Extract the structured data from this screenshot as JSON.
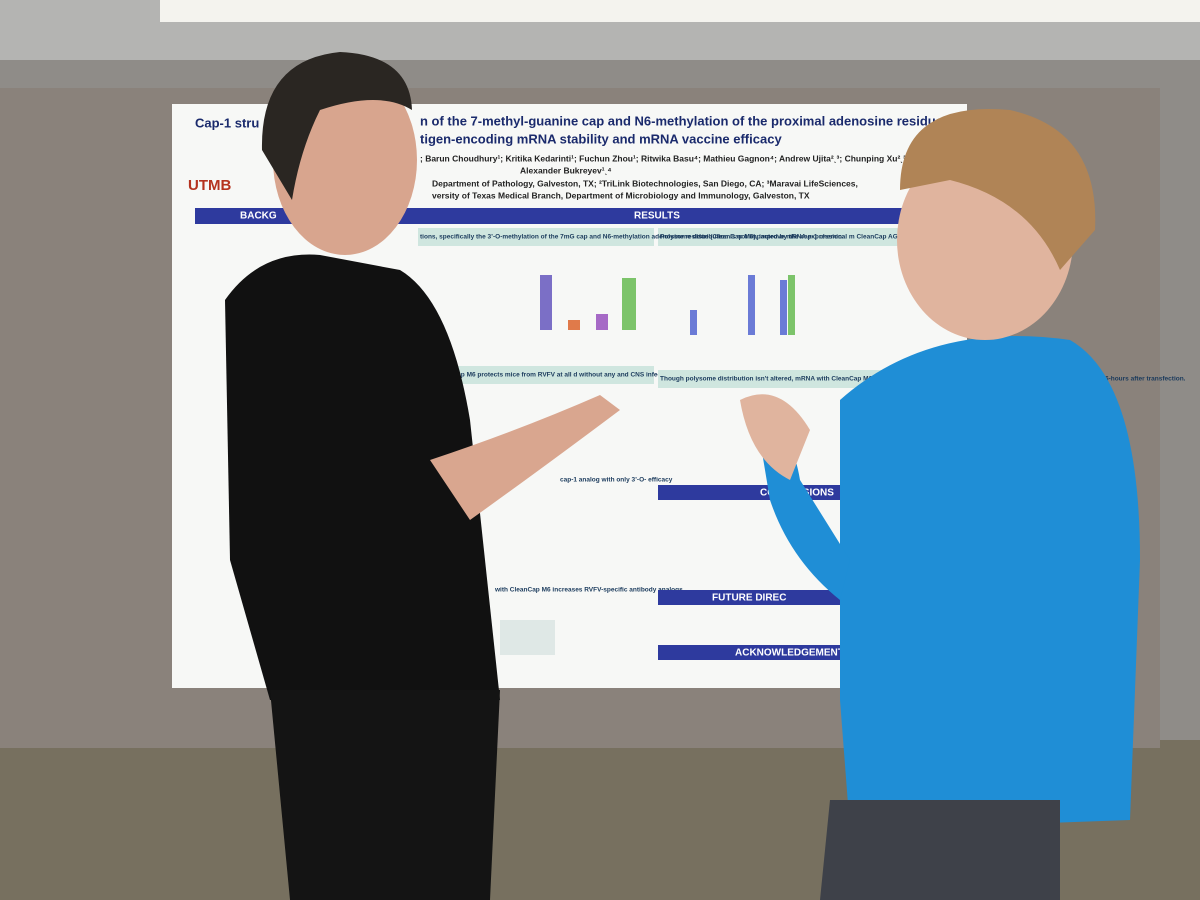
{
  "poster": {
    "title_start": "Cap-1 stru",
    "title_line1": "n of the 7-methyl-guanine cap and N6-methylation of the proximal adenosine residue",
    "title_line2": "tigen-encoding mRNA stability and mRNA vaccine efficacy",
    "authors_line1": "; Barun Choudhury¹; Kritika Kedarinti¹; Fuchun Zhou¹; Ritwika Basu⁴; Mathieu Gagnon⁴; Andrew Ujita²ˎ³; Chunping Xu²ˎ³;",
    "authors_line2": "Alexander Bukreyev¹ˎ⁴",
    "affiliations_line1": "Department of Pathology, Galveston, TX; ²TriLink Biotechnologies, San Diego, CA; ³Maravai LifeSciences,",
    "affiliations_line2": "versity of Texas Medical Branch, Department of Microbiology and Immunology, Galveston, TX",
    "logo": "UTMB",
    "sections": {
      "background": "BACKG",
      "results": "RESULTS",
      "conclusions": "CONCLUSIONS",
      "future": "FUTURE DIREC",
      "acknowledgements": "ACKNOWLEDGEMENTS"
    },
    "subheads": {
      "s1": "tions, specifically the 3’-O-methylation of the 7mG cap and N6-methylation adenosine residue (CleanCap M6), improve mRNA expression.",
      "s2": "Polysome distribution is not impacted by the cap-1 chemical m CleanCap AG (unmodified cap-1) and CleanCap M6",
      "s3": "with CleanCap M6 protects mice from RVFV at all d without any and CNS infection",
      "s4": "Though polysome distribution isn't altered, mRNA with CleanCap M6 presents greater abundance in polysome samples and cellular RNA pool, 16-hours after transfection.",
      "s5": "cap-1 analog with only 3’-O- efficacy",
      "s6": "with CleanCap M6 increases RVFV-specific antibody analogs."
    }
  }
}
